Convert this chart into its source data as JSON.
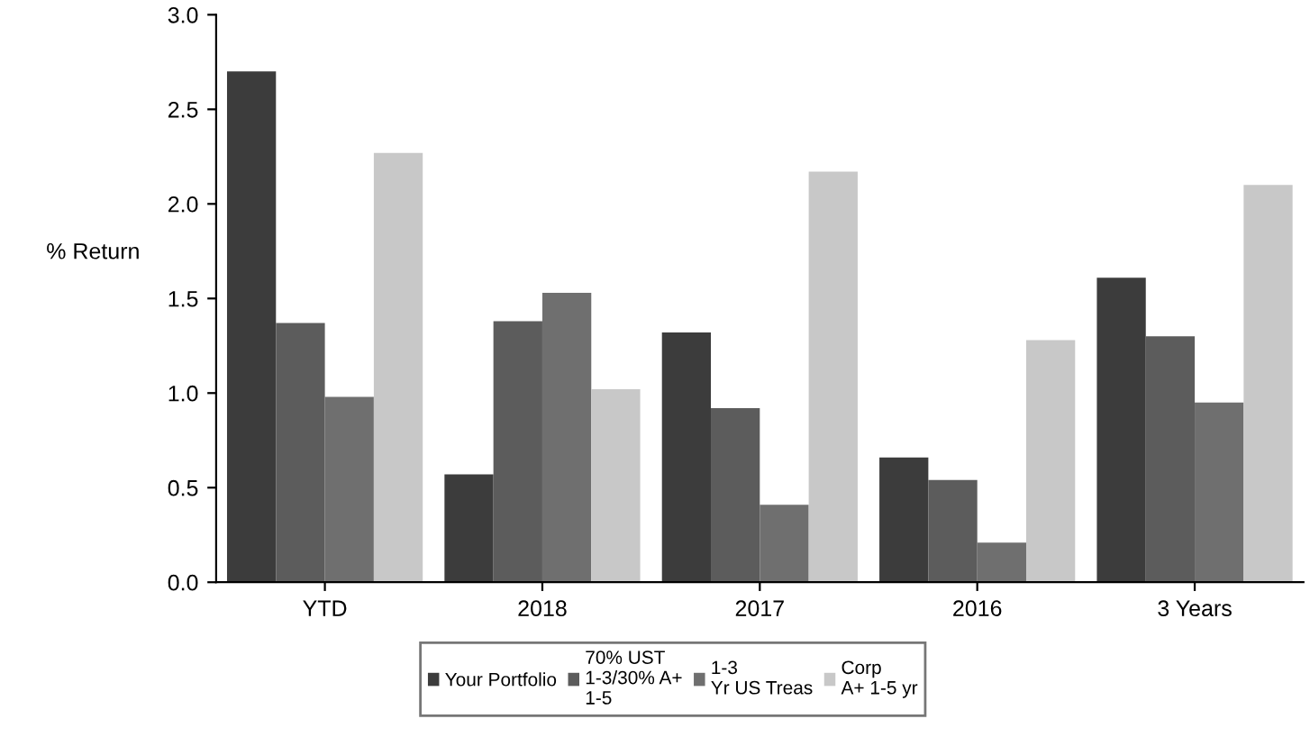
{
  "chart_data": {
    "type": "bar",
    "ylabel": "% Return",
    "categories": [
      "YTD",
      "2018",
      "2017",
      "2016",
      "3 Years"
    ],
    "series": [
      {
        "name": "Your Portfolio",
        "color": "#3c3c3c",
        "values": [
          2.7,
          0.57,
          1.32,
          0.66,
          1.61
        ]
      },
      {
        "name": "70% UST\n1-3/30% A+\n1-5",
        "color": "#5c5c5c",
        "values": [
          1.37,
          1.38,
          0.92,
          0.54,
          1.3
        ]
      },
      {
        "name": "1-3\nYr US Treas",
        "color": "#6f6f6f",
        "values": [
          0.98,
          1.53,
          0.41,
          0.21,
          0.95
        ]
      },
      {
        "name": "Corp\nA+ 1-5 yr",
        "color": "#c8c8c8",
        "values": [
          2.27,
          1.02,
          2.17,
          1.28,
          2.1
        ]
      }
    ],
    "ylim": [
      0,
      3.0
    ],
    "yticks": [
      {
        "value": 0,
        "label": "0.0"
      },
      {
        "value": 0.5,
        "label": "0.5"
      },
      {
        "value": 1.0,
        "label": "1.0"
      },
      {
        "value": 1.5,
        "label": "1.5"
      },
      {
        "value": 2.0,
        "label": "2.0"
      },
      {
        "value": 2.5,
        "label": "2.5"
      },
      {
        "value": 3.0,
        "label": "3.0"
      }
    ],
    "grid": false,
    "legend": "bottom"
  }
}
